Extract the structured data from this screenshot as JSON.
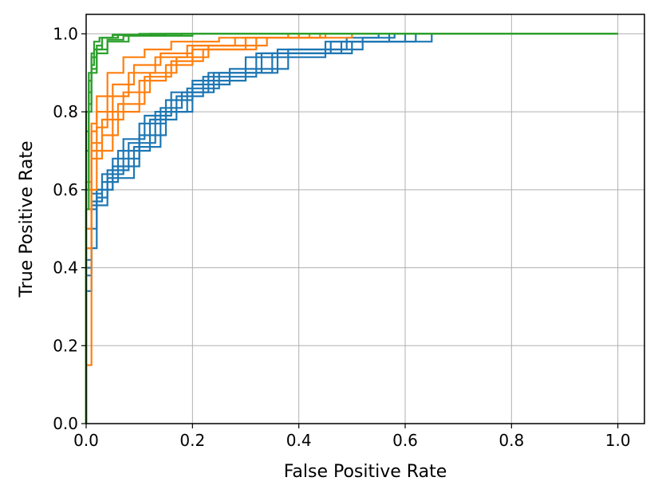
{
  "chart_data": {
    "type": "line",
    "title": "",
    "xlabel": "False Positive Rate",
    "ylabel": "True Positive Rate",
    "xlim": [
      0.0,
      1.05
    ],
    "ylim": [
      0.0,
      1.05
    ],
    "xticks": [
      "0.0",
      "0.2",
      "0.4",
      "0.6",
      "0.8",
      "1.0"
    ],
    "yticks": [
      "0.0",
      "0.2",
      "0.4",
      "0.6",
      "0.8",
      "1.0"
    ],
    "grid": true,
    "legend": "none",
    "series": [
      {
        "color": "#1f77b4",
        "x": [
          0.0,
          0.0,
          0.01,
          0.01,
          0.02,
          0.02,
          0.05,
          0.05,
          0.1,
          0.1,
          0.15,
          0.15,
          0.2,
          0.2,
          0.3,
          0.3,
          0.45,
          0.45,
          0.65,
          0.65,
          1.0
        ],
        "y": [
          0.0,
          0.34,
          0.34,
          0.55,
          0.55,
          0.6,
          0.6,
          0.68,
          0.68,
          0.77,
          0.77,
          0.83,
          0.83,
          0.88,
          0.88,
          0.94,
          0.94,
          0.98,
          0.98,
          1.0,
          1.0
        ]
      },
      {
        "color": "#1f77b4",
        "x": [
          0.0,
          0.0,
          0.01,
          0.01,
          0.03,
          0.03,
          0.06,
          0.06,
          0.12,
          0.12,
          0.17,
          0.17,
          0.22,
          0.22,
          0.32,
          0.32,
          0.48,
          0.48,
          0.62,
          0.62,
          1.0
        ],
        "y": [
          0.0,
          0.4,
          0.4,
          0.57,
          0.57,
          0.62,
          0.62,
          0.7,
          0.7,
          0.78,
          0.78,
          0.84,
          0.84,
          0.89,
          0.89,
          0.95,
          0.95,
          0.98,
          0.98,
          1.0,
          1.0
        ]
      },
      {
        "color": "#1f77b4",
        "x": [
          0.0,
          0.0,
          0.02,
          0.02,
          0.04,
          0.04,
          0.08,
          0.08,
          0.13,
          0.13,
          0.19,
          0.19,
          0.25,
          0.25,
          0.35,
          0.35,
          0.5,
          0.5,
          0.6,
          0.6,
          1.0
        ],
        "y": [
          0.0,
          0.45,
          0.45,
          0.58,
          0.58,
          0.65,
          0.65,
          0.72,
          0.72,
          0.8,
          0.8,
          0.86,
          0.86,
          0.9,
          0.9,
          0.95,
          0.95,
          0.98,
          0.98,
          1.0,
          1.0
        ]
      },
      {
        "color": "#1f77b4",
        "x": [
          0.0,
          0.0,
          0.02,
          0.02,
          0.05,
          0.05,
          0.1,
          0.1,
          0.15,
          0.15,
          0.2,
          0.2,
          0.27,
          0.27,
          0.38,
          0.38,
          0.52,
          0.52,
          0.58,
          0.58,
          1.0
        ],
        "y": [
          0.0,
          0.5,
          0.5,
          0.6,
          0.6,
          0.66,
          0.66,
          0.74,
          0.74,
          0.8,
          0.8,
          0.87,
          0.87,
          0.91,
          0.91,
          0.96,
          0.96,
          0.99,
          0.99,
          1.0,
          1.0
        ]
      },
      {
        "color": "#1f77b4",
        "x": [
          0.0,
          0.0,
          0.01,
          0.01,
          0.03,
          0.03,
          0.07,
          0.07,
          0.11,
          0.11,
          0.16,
          0.16,
          0.23,
          0.23,
          0.33,
          0.33,
          0.46,
          0.46,
          0.57,
          0.57,
          1.0
        ],
        "y": [
          0.0,
          0.42,
          0.42,
          0.59,
          0.59,
          0.64,
          0.64,
          0.73,
          0.73,
          0.79,
          0.79,
          0.85,
          0.85,
          0.9,
          0.9,
          0.95,
          0.95,
          0.98,
          0.98,
          1.0,
          1.0
        ]
      },
      {
        "color": "#1f77b4",
        "x": [
          0.0,
          0.0,
          0.01,
          0.01,
          0.04,
          0.04,
          0.09,
          0.09,
          0.14,
          0.14,
          0.18,
          0.18,
          0.24,
          0.24,
          0.36,
          0.36,
          0.49,
          0.49,
          0.55,
          0.55,
          1.0
        ],
        "y": [
          0.0,
          0.38,
          0.38,
          0.56,
          0.56,
          0.63,
          0.63,
          0.71,
          0.71,
          0.81,
          0.81,
          0.85,
          0.85,
          0.9,
          0.9,
          0.96,
          0.96,
          0.99,
          0.99,
          1.0,
          1.0
        ]
      },
      {
        "color": "#ff7f0e",
        "x": [
          0.0,
          0.0,
          0.01,
          0.01,
          0.02,
          0.02,
          0.05,
          0.05,
          0.1,
          0.1,
          0.15,
          0.15,
          0.2,
          0.2,
          0.3,
          0.3,
          0.42,
          0.42,
          1.0
        ],
        "y": [
          0.0,
          0.15,
          0.15,
          0.6,
          0.6,
          0.7,
          0.7,
          0.8,
          0.8,
          0.88,
          0.88,
          0.92,
          0.92,
          0.96,
          0.96,
          0.99,
          0.99,
          1.0,
          1.0
        ]
      },
      {
        "color": "#ff7f0e",
        "x": [
          0.0,
          0.0,
          0.01,
          0.01,
          0.03,
          0.03,
          0.06,
          0.06,
          0.11,
          0.11,
          0.16,
          0.16,
          0.22,
          0.22,
          0.32,
          0.32,
          0.45,
          0.45,
          1.0
        ],
        "y": [
          0.0,
          0.45,
          0.45,
          0.68,
          0.68,
          0.74,
          0.74,
          0.82,
          0.82,
          0.89,
          0.89,
          0.93,
          0.93,
          0.96,
          0.96,
          0.99,
          0.99,
          1.0,
          1.0
        ]
      },
      {
        "color": "#ff7f0e",
        "x": [
          0.0,
          0.0,
          0.01,
          0.01,
          0.02,
          0.02,
          0.04,
          0.04,
          0.08,
          0.08,
          0.13,
          0.13,
          0.19,
          0.19,
          0.28,
          0.28,
          0.4,
          0.4,
          1.0
        ],
        "y": [
          0.0,
          0.5,
          0.5,
          0.7,
          0.7,
          0.76,
          0.76,
          0.84,
          0.84,
          0.9,
          0.9,
          0.94,
          0.94,
          0.97,
          0.97,
          0.99,
          0.99,
          1.0,
          1.0
        ]
      },
      {
        "color": "#ff7f0e",
        "x": [
          0.0,
          0.0,
          0.01,
          0.01,
          0.03,
          0.03,
          0.07,
          0.07,
          0.12,
          0.12,
          0.17,
          0.17,
          0.23,
          0.23,
          0.34,
          0.34,
          0.5,
          0.5,
          1.0
        ],
        "y": [
          0.0,
          0.55,
          0.55,
          0.72,
          0.72,
          0.78,
          0.78,
          0.85,
          0.85,
          0.9,
          0.9,
          0.94,
          0.94,
          0.97,
          0.97,
          0.99,
          0.99,
          1.0,
          1.0
        ]
      },
      {
        "color": "#ff7f0e",
        "x": [
          0.0,
          0.0,
          0.01,
          0.01,
          0.02,
          0.02,
          0.05,
          0.05,
          0.09,
          0.09,
          0.14,
          0.14,
          0.2,
          0.2,
          0.3,
          0.3,
          0.44,
          0.44,
          1.0
        ],
        "y": [
          0.0,
          0.6,
          0.6,
          0.75,
          0.75,
          0.8,
          0.8,
          0.87,
          0.87,
          0.92,
          0.92,
          0.95,
          0.95,
          0.97,
          0.97,
          0.99,
          0.99,
          1.0,
          1.0
        ]
      },
      {
        "color": "#ff7f0e",
        "x": [
          0.0,
          0.0,
          0.01,
          0.01,
          0.02,
          0.02,
          0.04,
          0.04,
          0.07,
          0.07,
          0.11,
          0.11,
          0.16,
          0.16,
          0.25,
          0.25,
          0.38,
          0.38,
          1.0
        ],
        "y": [
          0.0,
          0.62,
          0.62,
          0.77,
          0.77,
          0.84,
          0.84,
          0.9,
          0.9,
          0.94,
          0.94,
          0.96,
          0.96,
          0.98,
          0.98,
          0.99,
          0.99,
          1.0,
          1.0
        ]
      },
      {
        "color": "#2ca02c",
        "x": [
          0.0,
          0.0,
          0.005,
          0.005,
          0.01,
          0.01,
          0.02,
          0.02,
          0.04,
          0.04,
          0.08,
          0.08,
          0.2,
          0.2,
          1.0
        ],
        "y": [
          0.0,
          0.55,
          0.55,
          0.8,
          0.8,
          0.9,
          0.9,
          0.95,
          0.95,
          0.98,
          0.98,
          0.995,
          0.995,
          1.0,
          1.0
        ]
      },
      {
        "color": "#2ca02c",
        "x": [
          0.0,
          0.0,
          0.005,
          0.005,
          0.01,
          0.01,
          0.015,
          0.015,
          0.03,
          0.03,
          0.06,
          0.06,
          0.15,
          0.15,
          1.0
        ],
        "y": [
          0.0,
          0.7,
          0.7,
          0.85,
          0.85,
          0.92,
          0.92,
          0.96,
          0.96,
          0.99,
          0.99,
          0.997,
          0.997,
          1.0,
          1.0
        ]
      },
      {
        "color": "#2ca02c",
        "x": [
          0.0,
          0.0,
          0.005,
          0.005,
          0.01,
          0.01,
          0.02,
          0.02,
          0.03,
          0.03,
          0.05,
          0.05,
          0.12,
          0.12,
          1.0
        ],
        "y": [
          0.0,
          0.75,
          0.75,
          0.88,
          0.88,
          0.94,
          0.94,
          0.97,
          0.97,
          0.99,
          0.99,
          0.998,
          0.998,
          1.0,
          1.0
        ]
      },
      {
        "color": "#2ca02c",
        "x": [
          0.0,
          0.0,
          0.005,
          0.005,
          0.01,
          0.01,
          0.02,
          0.02,
          0.04,
          0.04,
          0.07,
          0.07,
          0.18,
          0.18,
          1.0
        ],
        "y": [
          0.0,
          0.6,
          0.6,
          0.82,
          0.82,
          0.91,
          0.91,
          0.96,
          0.96,
          0.985,
          0.985,
          0.995,
          0.995,
          1.0,
          1.0
        ]
      },
      {
        "color": "#2ca02c",
        "x": [
          0.0,
          0.0,
          0.005,
          0.005,
          0.01,
          0.01,
          0.015,
          0.015,
          0.025,
          0.025,
          0.05,
          0.05,
          0.1,
          0.1,
          1.0
        ],
        "y": [
          0.0,
          0.8,
          0.8,
          0.9,
          0.9,
          0.95,
          0.95,
          0.98,
          0.98,
          0.99,
          0.99,
          0.997,
          0.997,
          1.0,
          1.0
        ]
      }
    ]
  }
}
